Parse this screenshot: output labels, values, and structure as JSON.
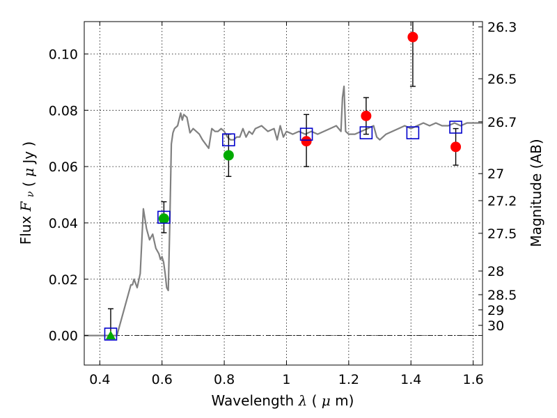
{
  "chart_data": {
    "type": "scatter",
    "title": "",
    "xlabel": "Wavelength",
    "xlabel_symbol": "λ",
    "xlabel_unit_open": "(",
    "xlabel_unit_mu": "μ",
    "xlabel_unit_rest": "m)",
    "ylabel": "Flux",
    "ylabel_symbol": "F",
    "ylabel_subscript": "ν",
    "ylabel_unit_open": "(",
    "ylabel_unit_mu": "μ",
    "ylabel_unit_rest": "Jy )",
    "y2label": "Magnitude (AB)",
    "xlim": [
      0.35,
      1.63
    ],
    "ylim": [
      -0.0105,
      0.1115
    ],
    "grid": true,
    "xticks": [
      0.4,
      0.6,
      0.8,
      1.0,
      1.2,
      1.4,
      1.6
    ],
    "xtick_labels": [
      "0.4",
      "0.6",
      "0.8",
      "1",
      "1.2",
      "1.4",
      "1.6"
    ],
    "yticks": [
      0.0,
      0.02,
      0.04,
      0.06,
      0.08,
      0.1
    ],
    "ytick_labels": [
      "0.00",
      "0.02",
      "0.04",
      "0.06",
      "0.08",
      "0.10"
    ],
    "right_ticks": [
      {
        "label": "26.3",
        "flux": 0.1096
      },
      {
        "label": "26.5",
        "flux": 0.0912
      },
      {
        "label": "26.7",
        "flux": 0.0759
      },
      {
        "label": "27",
        "flux": 0.0575
      },
      {
        "label": "27.2",
        "flux": 0.0479
      },
      {
        "label": "27.5",
        "flux": 0.0363
      },
      {
        "label": "28",
        "flux": 0.0229
      },
      {
        "label": "28.5",
        "flux": 0.0145
      },
      {
        "label": "29",
        "flux": 0.0091
      },
      {
        "label": "30",
        "flux": 0.0036
      }
    ],
    "colors": {
      "model": "#808080",
      "detection": "#ff0000",
      "low_sn": "#00aa00",
      "model_flux_box": "#0000cc",
      "errorbar": "#000000",
      "zero_line": "#000000"
    },
    "model_sed": [
      [
        0.35,
        0.0
      ],
      [
        0.44,
        0.0
      ],
      [
        0.455,
        0.0
      ],
      [
        0.47,
        0.006
      ],
      [
        0.485,
        0.012
      ],
      [
        0.5,
        0.018
      ],
      [
        0.505,
        0.018
      ],
      [
        0.51,
        0.02
      ],
      [
        0.52,
        0.017
      ],
      [
        0.53,
        0.022
      ],
      [
        0.54,
        0.045
      ],
      [
        0.55,
        0.038
      ],
      [
        0.56,
        0.034
      ],
      [
        0.57,
        0.036
      ],
      [
        0.58,
        0.031
      ],
      [
        0.59,
        0.029
      ],
      [
        0.595,
        0.027
      ],
      [
        0.6,
        0.028
      ],
      [
        0.605,
        0.026
      ],
      [
        0.61,
        0.022
      ],
      [
        0.615,
        0.017
      ],
      [
        0.62,
        0.016
      ],
      [
        0.625,
        0.04
      ],
      [
        0.63,
        0.068
      ],
      [
        0.635,
        0.072
      ],
      [
        0.64,
        0.0735
      ],
      [
        0.65,
        0.0745
      ],
      [
        0.66,
        0.079
      ],
      [
        0.665,
        0.0765
      ],
      [
        0.67,
        0.0785
      ],
      [
        0.68,
        0.0775
      ],
      [
        0.69,
        0.072
      ],
      [
        0.7,
        0.0735
      ],
      [
        0.71,
        0.0725
      ],
      [
        0.72,
        0.0715
      ],
      [
        0.73,
        0.0695
      ],
      [
        0.74,
        0.068
      ],
      [
        0.75,
        0.0665
      ],
      [
        0.76,
        0.0735
      ],
      [
        0.77,
        0.0725
      ],
      [
        0.78,
        0.0725
      ],
      [
        0.79,
        0.0735
      ],
      [
        0.8,
        0.0725
      ],
      [
        0.81,
        0.0705
      ],
      [
        0.82,
        0.0695
      ],
      [
        0.83,
        0.0695
      ],
      [
        0.84,
        0.0705
      ],
      [
        0.85,
        0.0705
      ],
      [
        0.86,
        0.0735
      ],
      [
        0.87,
        0.0705
      ],
      [
        0.88,
        0.0725
      ],
      [
        0.89,
        0.0715
      ],
      [
        0.9,
        0.0735
      ],
      [
        0.92,
        0.0745
      ],
      [
        0.94,
        0.0725
      ],
      [
        0.96,
        0.0735
      ],
      [
        0.97,
        0.0695
      ],
      [
        0.98,
        0.0745
      ],
      [
        0.99,
        0.0705
      ],
      [
        1.0,
        0.0725
      ],
      [
        1.02,
        0.0715
      ],
      [
        1.04,
        0.0725
      ],
      [
        1.06,
        0.0715
      ],
      [
        1.08,
        0.0725
      ],
      [
        1.1,
        0.0715
      ],
      [
        1.12,
        0.0725
      ],
      [
        1.14,
        0.0735
      ],
      [
        1.16,
        0.0745
      ],
      [
        1.175,
        0.0725
      ],
      [
        1.18,
        0.0845
      ],
      [
        1.185,
        0.0885
      ],
      [
        1.19,
        0.0725
      ],
      [
        1.2,
        0.0715
      ],
      [
        1.22,
        0.0715
      ],
      [
        1.24,
        0.0725
      ],
      [
        1.26,
        0.0735
      ],
      [
        1.28,
        0.0745
      ],
      [
        1.29,
        0.0705
      ],
      [
        1.3,
        0.0695
      ],
      [
        1.32,
        0.0715
      ],
      [
        1.34,
        0.0725
      ],
      [
        1.36,
        0.0735
      ],
      [
        1.38,
        0.0745
      ],
      [
        1.4,
        0.0735
      ],
      [
        1.42,
        0.0745
      ],
      [
        1.44,
        0.0755
      ],
      [
        1.46,
        0.0745
      ],
      [
        1.48,
        0.0755
      ],
      [
        1.5,
        0.0745
      ],
      [
        1.52,
        0.0745
      ],
      [
        1.54,
        0.0755
      ],
      [
        1.56,
        0.0745
      ],
      [
        1.58,
        0.0755
      ],
      [
        1.6,
        0.0755
      ],
      [
        1.63,
        0.0755
      ]
    ],
    "model_fluxes": [
      {
        "x": 0.435,
        "y": 0.0005
      },
      {
        "x": 0.606,
        "y": 0.042
      },
      {
        "x": 0.814,
        "y": 0.0695
      },
      {
        "x": 1.064,
        "y": 0.0715
      },
      {
        "x": 1.256,
        "y": 0.072
      },
      {
        "x": 1.406,
        "y": 0.072
      },
      {
        "x": 1.544,
        "y": 0.074
      }
    ],
    "observations": [
      {
        "x": 0.435,
        "y": 0.0,
        "err_low": 0.0,
        "err_high": 0.0095,
        "class": "low_sn",
        "marker": "triangle"
      },
      {
        "x": 0.606,
        "y": 0.0415,
        "err_low": 0.0365,
        "err_high": 0.0475,
        "class": "low_sn",
        "marker": "circle"
      },
      {
        "x": 0.814,
        "y": 0.064,
        "err_low": 0.0565,
        "err_high": 0.0715,
        "class": "low_sn",
        "marker": "circle"
      },
      {
        "x": 1.064,
        "y": 0.069,
        "err_low": 0.06,
        "err_high": 0.0785,
        "class": "detection",
        "marker": "circle"
      },
      {
        "x": 1.256,
        "y": 0.078,
        "err_low": 0.0715,
        "err_high": 0.0845,
        "class": "detection",
        "marker": "circle"
      },
      {
        "x": 1.406,
        "y": 0.106,
        "err_low": 0.0885,
        "err_high": 0.1115,
        "class": "detection",
        "marker": "circle"
      },
      {
        "x": 1.544,
        "y": 0.067,
        "err_low": 0.0605,
        "err_high": 0.0735,
        "class": "detection",
        "marker": "circle"
      }
    ]
  }
}
